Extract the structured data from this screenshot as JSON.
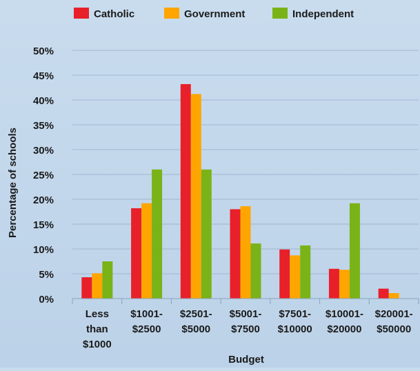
{
  "chart_data": {
    "type": "bar",
    "title": "",
    "xlabel": "Budget",
    "ylabel": "Percentage of schools",
    "categories": [
      [
        "Less",
        "than",
        "$1000"
      ],
      [
        "$1001-",
        "$2500"
      ],
      [
        "$2501-",
        "$5000"
      ],
      [
        "$5001-",
        "$7500"
      ],
      [
        "$7501-",
        "$10000"
      ],
      [
        "$10001-",
        "$20000"
      ],
      [
        "$20001-",
        "$50000"
      ]
    ],
    "series": [
      {
        "name": "Catholic",
        "color": "#e8202a",
        "values": [
          4.3,
          18.2,
          43.2,
          18.0,
          9.9,
          6.0,
          2.0
        ]
      },
      {
        "name": "Government",
        "color": "#ffa500",
        "values": [
          5.1,
          19.2,
          41.2,
          18.6,
          8.7,
          5.8,
          1.1
        ]
      },
      {
        "name": "Independent",
        "color": "#7ab317",
        "values": [
          7.5,
          26.0,
          26.0,
          11.1,
          10.7,
          19.2,
          0
        ]
      }
    ],
    "ylim": [
      0,
      50
    ],
    "yticks": [
      0,
      5,
      10,
      15,
      20,
      25,
      30,
      35,
      40,
      45,
      50
    ],
    "ytick_labels": [
      "0%",
      "5%",
      "10%",
      "15%",
      "20%",
      "25%",
      "30%",
      "35%",
      "40%",
      "45%",
      "50%"
    ],
    "grid": true,
    "legend_position": "top"
  }
}
